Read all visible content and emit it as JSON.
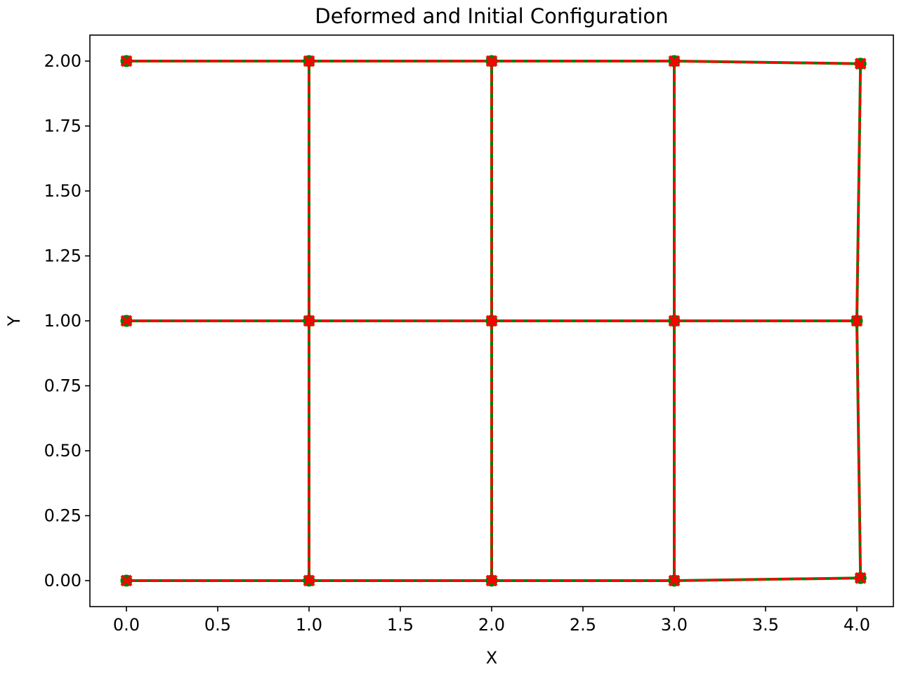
{
  "chart_data": {
    "type": "line",
    "title": "Deformed and Initial Configuration",
    "xlabel": "X",
    "ylabel": "Y",
    "xlim": [
      -0.2,
      4.2
    ],
    "ylim": [
      -0.1,
      2.1
    ],
    "x_ticks": [
      0.0,
      0.5,
      1.0,
      1.5,
      2.0,
      2.5,
      3.0,
      3.5,
      4.0
    ],
    "x_tick_labels": [
      "0.0",
      "0.5",
      "1.0",
      "1.5",
      "2.0",
      "2.5",
      "3.0",
      "3.5",
      "4.0"
    ],
    "y_ticks": [
      0.0,
      0.25,
      0.5,
      0.75,
      1.0,
      1.25,
      1.5,
      1.75,
      2.0
    ],
    "y_tick_labels": [
      "0.00",
      "0.25",
      "0.50",
      "0.75",
      "1.00",
      "1.25",
      "1.50",
      "1.75",
      "2.00"
    ],
    "grid": false,
    "series": [
      {
        "color": "#008000",
        "line_style": "solid",
        "marker": "circle",
        "nodes": [
          [
            0,
            0
          ],
          [
            1,
            0
          ],
          [
            2,
            0
          ],
          [
            3,
            0
          ],
          [
            4.02,
            0.01
          ],
          [
            0,
            1
          ],
          [
            1,
            1
          ],
          [
            2,
            1
          ],
          [
            3,
            1
          ],
          [
            4.0,
            1.0
          ],
          [
            0,
            2
          ],
          [
            1,
            2
          ],
          [
            2,
            2
          ],
          [
            3,
            2
          ],
          [
            4.02,
            1.99
          ]
        ],
        "edges": [
          [
            0,
            1
          ],
          [
            1,
            2
          ],
          [
            2,
            3
          ],
          [
            3,
            4
          ],
          [
            5,
            6
          ],
          [
            6,
            7
          ],
          [
            7,
            8
          ],
          [
            8,
            9
          ],
          [
            10,
            11
          ],
          [
            11,
            12
          ],
          [
            12,
            13
          ],
          [
            13,
            14
          ],
          [
            1,
            6
          ],
          [
            6,
            11
          ],
          [
            2,
            7
          ],
          [
            7,
            12
          ],
          [
            3,
            8
          ],
          [
            8,
            13
          ],
          [
            4,
            9
          ],
          [
            9,
            14
          ]
        ]
      },
      {
        "color": "#ff0000",
        "line_style": "dashed",
        "marker": "x",
        "nodes": [
          [
            0,
            0
          ],
          [
            1,
            0
          ],
          [
            2,
            0
          ],
          [
            3,
            0
          ],
          [
            4.02,
            0.01
          ],
          [
            0,
            1
          ],
          [
            1,
            1
          ],
          [
            2,
            1
          ],
          [
            3,
            1
          ],
          [
            4.0,
            1.0
          ],
          [
            0,
            2
          ],
          [
            1,
            2
          ],
          [
            2,
            2
          ],
          [
            3,
            2
          ],
          [
            4.02,
            1.99
          ]
        ],
        "edges": [
          [
            0,
            1
          ],
          [
            1,
            2
          ],
          [
            2,
            3
          ],
          [
            3,
            4
          ],
          [
            5,
            6
          ],
          [
            6,
            7
          ],
          [
            7,
            8
          ],
          [
            8,
            9
          ],
          [
            10,
            11
          ],
          [
            11,
            12
          ],
          [
            12,
            13
          ],
          [
            13,
            14
          ],
          [
            1,
            6
          ],
          [
            6,
            11
          ],
          [
            2,
            7
          ],
          [
            7,
            12
          ],
          [
            3,
            8
          ],
          [
            8,
            13
          ],
          [
            4,
            9
          ],
          [
            9,
            14
          ]
        ]
      }
    ]
  }
}
